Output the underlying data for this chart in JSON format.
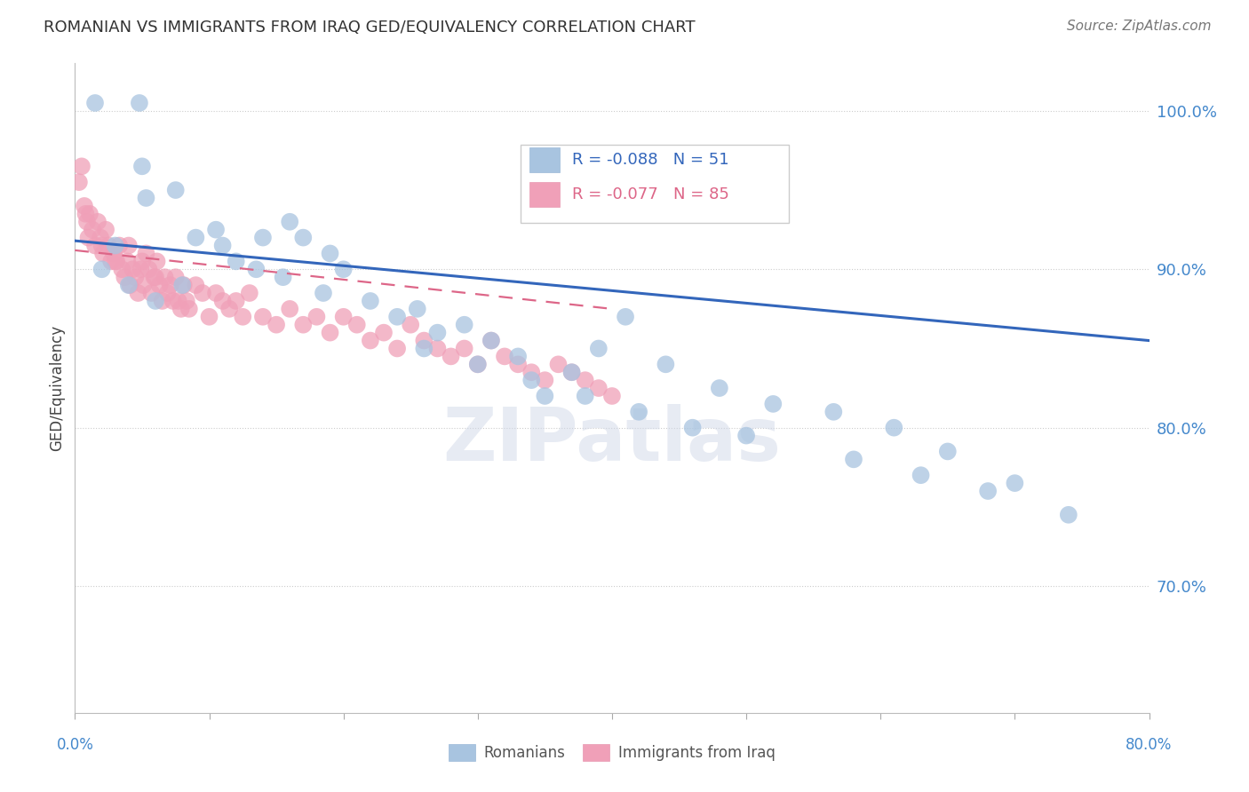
{
  "title": "ROMANIAN VS IMMIGRANTS FROM IRAQ GED/EQUIVALENCY CORRELATION CHART",
  "source": "Source: ZipAtlas.com",
  "ylabel": "GED/Equivalency",
  "xlim": [
    0.0,
    80.0
  ],
  "ylim": [
    62.0,
    103.0
  ],
  "yticks": [
    70.0,
    80.0,
    90.0,
    100.0
  ],
  "ytick_labels": [
    "70.0%",
    "80.0%",
    "90.0%",
    "100.0%"
  ],
  "legend_blue_label": "Romanians",
  "legend_pink_label": "Immigrants from Iraq",
  "r_blue": -0.088,
  "n_blue": 51,
  "r_pink": -0.077,
  "n_pink": 85,
  "blue_color": "#a8c4e0",
  "pink_color": "#f0a0b8",
  "blue_line_color": "#3366bb",
  "pink_line_color": "#dd6688",
  "watermark": "ZIPatlas",
  "blue_line_x0": 0.0,
  "blue_line_y0": 91.8,
  "blue_line_x1": 80.0,
  "blue_line_y1": 85.5,
  "pink_line_x0": 0.0,
  "pink_line_y0": 91.2,
  "pink_line_x1": 40.0,
  "pink_line_y1": 87.5,
  "blue_x": [
    1.5,
    4.8,
    5.0,
    5.3,
    7.5,
    9.0,
    10.5,
    11.0,
    12.0,
    13.5,
    14.0,
    15.5,
    16.0,
    17.0,
    18.5,
    19.0,
    20.0,
    22.0,
    24.0,
    25.5,
    27.0,
    29.0,
    31.0,
    33.0,
    35.0,
    37.0,
    39.0,
    41.0,
    44.0,
    48.0,
    52.0,
    56.5,
    61.0,
    65.0,
    70.0,
    2.0,
    3.0,
    4.0,
    6.0,
    8.0,
    26.0,
    30.0,
    34.0,
    38.0,
    42.0,
    46.0,
    50.0,
    58.0,
    63.0,
    68.0,
    74.0
  ],
  "blue_y": [
    100.5,
    100.5,
    96.5,
    94.5,
    95.0,
    92.0,
    92.5,
    91.5,
    90.5,
    90.0,
    92.0,
    89.5,
    93.0,
    92.0,
    88.5,
    91.0,
    90.0,
    88.0,
    87.0,
    87.5,
    86.0,
    86.5,
    85.5,
    84.5,
    82.0,
    83.5,
    85.0,
    87.0,
    84.0,
    82.5,
    81.5,
    81.0,
    80.0,
    78.5,
    76.5,
    90.0,
    91.5,
    89.0,
    88.0,
    89.0,
    85.0,
    84.0,
    83.0,
    82.0,
    81.0,
    80.0,
    79.5,
    78.0,
    77.0,
    76.0,
    74.5
  ],
  "pink_x": [
    0.3,
    0.5,
    0.7,
    0.9,
    1.1,
    1.3,
    1.5,
    1.7,
    1.9,
    2.1,
    2.3,
    2.5,
    2.7,
    2.9,
    3.1,
    3.3,
    3.5,
    3.7,
    3.9,
    4.1,
    4.3,
    4.5,
    4.7,
    4.9,
    5.1,
    5.3,
    5.5,
    5.7,
    5.9,
    6.1,
    6.3,
    6.5,
    6.7,
    6.9,
    7.1,
    7.3,
    7.5,
    7.7,
    7.9,
    8.1,
    8.3,
    8.5,
    9.0,
    9.5,
    10.0,
    10.5,
    11.0,
    11.5,
    12.0,
    12.5,
    13.0,
    14.0,
    15.0,
    16.0,
    17.0,
    18.0,
    19.0,
    20.0,
    21.0,
    22.0,
    23.0,
    24.0,
    25.0,
    26.0,
    27.0,
    28.0,
    29.0,
    30.0,
    31.0,
    32.0,
    33.0,
    34.0,
    35.0,
    36.0,
    37.0,
    38.0,
    39.0,
    40.0,
    0.8,
    1.0,
    2.0,
    3.0,
    4.0,
    5.0,
    6.0
  ],
  "pink_y": [
    95.5,
    96.5,
    94.0,
    93.0,
    93.5,
    92.5,
    91.5,
    93.0,
    92.0,
    91.0,
    92.5,
    91.5,
    90.5,
    91.0,
    90.5,
    91.5,
    90.0,
    89.5,
    90.5,
    89.0,
    90.0,
    89.5,
    88.5,
    90.0,
    89.0,
    91.0,
    90.0,
    88.5,
    89.5,
    90.5,
    89.0,
    88.0,
    89.5,
    88.5,
    89.0,
    88.0,
    89.5,
    88.0,
    87.5,
    89.0,
    88.0,
    87.5,
    89.0,
    88.5,
    87.0,
    88.5,
    88.0,
    87.5,
    88.0,
    87.0,
    88.5,
    87.0,
    86.5,
    87.5,
    86.5,
    87.0,
    86.0,
    87.0,
    86.5,
    85.5,
    86.0,
    85.0,
    86.5,
    85.5,
    85.0,
    84.5,
    85.0,
    84.0,
    85.5,
    84.5,
    84.0,
    83.5,
    83.0,
    84.0,
    83.5,
    83.0,
    82.5,
    82.0,
    93.5,
    92.0,
    91.5,
    90.5,
    91.5,
    90.5,
    89.5
  ]
}
